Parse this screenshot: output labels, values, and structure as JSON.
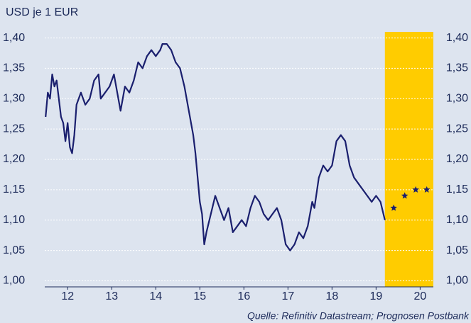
{
  "chart_data": {
    "type": "line",
    "title": "USD je 1 EUR",
    "source": "Quelle: Refinitiv Datastream; Prognosen Postbank",
    "xlim": [
      11.98,
      20.8
    ],
    "ylim": [
      0.99,
      1.41
    ],
    "xticks": [
      {
        "value": 12.5,
        "label": "12"
      },
      {
        "value": 13.5,
        "label": "13"
      },
      {
        "value": 14.5,
        "label": "14"
      },
      {
        "value": 15.5,
        "label": "15"
      },
      {
        "value": 16.5,
        "label": "16"
      },
      {
        "value": 17.5,
        "label": "17"
      },
      {
        "value": 18.5,
        "label": "18"
      },
      {
        "value": 19.5,
        "label": "19"
      },
      {
        "value": 20.5,
        "label": "20"
      }
    ],
    "yticks": [
      {
        "value": 1.0,
        "label": "1,00"
      },
      {
        "value": 1.05,
        "label": "1,05"
      },
      {
        "value": 1.1,
        "label": "1,10"
      },
      {
        "value": 1.15,
        "label": "1,15"
      },
      {
        "value": 1.2,
        "label": "1,20"
      },
      {
        "value": 1.25,
        "label": "1,25"
      },
      {
        "value": 1.3,
        "label": "1,30"
      },
      {
        "value": 1.35,
        "label": "1,35"
      },
      {
        "value": 1.4,
        "label": "1,40"
      }
    ],
    "grid": true,
    "forecast_region": [
      19.7,
      20.8
    ],
    "forecast_color": "#ffcc00",
    "series": [
      {
        "color": "#1a1f6e",
        "x": [
          12.0,
          12.05,
          12.1,
          12.15,
          12.2,
          12.25,
          12.3,
          12.35,
          12.4,
          12.45,
          12.5,
          12.55,
          12.6,
          12.65,
          12.7,
          12.8,
          12.9,
          13.0,
          13.1,
          13.2,
          13.25,
          13.35,
          13.45,
          13.55,
          13.65,
          13.7,
          13.8,
          13.9,
          14.0,
          14.1,
          14.2,
          14.3,
          14.4,
          14.5,
          14.6,
          14.65,
          14.75,
          14.85,
          14.95,
          15.05,
          15.15,
          15.25,
          15.35,
          15.4,
          15.45,
          15.5,
          15.55,
          15.6,
          15.65,
          15.75,
          15.85,
          15.95,
          16.05,
          16.15,
          16.25,
          16.35,
          16.45,
          16.55,
          16.65,
          16.75,
          16.85,
          16.95,
          17.05,
          17.15,
          17.25,
          17.35,
          17.45,
          17.55,
          17.65,
          17.75,
          17.85,
          17.95,
          18.05,
          18.1,
          18.2,
          18.3,
          18.4,
          18.5,
          18.6,
          18.7,
          18.8,
          18.9,
          19.0,
          19.1,
          19.2,
          19.3,
          19.4,
          19.5,
          19.6,
          19.7
        ],
        "values": [
          1.27,
          1.31,
          1.3,
          1.34,
          1.32,
          1.33,
          1.3,
          1.27,
          1.26,
          1.23,
          1.26,
          1.22,
          1.21,
          1.24,
          1.29,
          1.31,
          1.29,
          1.3,
          1.33,
          1.34,
          1.3,
          1.31,
          1.32,
          1.34,
          1.3,
          1.28,
          1.32,
          1.31,
          1.33,
          1.36,
          1.35,
          1.37,
          1.38,
          1.37,
          1.38,
          1.39,
          1.39,
          1.38,
          1.36,
          1.35,
          1.32,
          1.28,
          1.24,
          1.21,
          1.17,
          1.13,
          1.11,
          1.06,
          1.08,
          1.11,
          1.14,
          1.12,
          1.1,
          1.12,
          1.08,
          1.09,
          1.1,
          1.09,
          1.12,
          1.14,
          1.13,
          1.11,
          1.1,
          1.11,
          1.12,
          1.1,
          1.06,
          1.05,
          1.06,
          1.08,
          1.07,
          1.09,
          1.13,
          1.12,
          1.17,
          1.19,
          1.18,
          1.19,
          1.23,
          1.24,
          1.23,
          1.19,
          1.17,
          1.16,
          1.15,
          1.14,
          1.13,
          1.14,
          1.13,
          1.1
        ]
      },
      {
        "type": "scatter",
        "color": "#1a1f6e",
        "x": [
          19.9,
          20.15,
          20.4,
          20.65
        ],
        "values": [
          1.12,
          1.14,
          1.15,
          1.15
        ]
      }
    ]
  }
}
